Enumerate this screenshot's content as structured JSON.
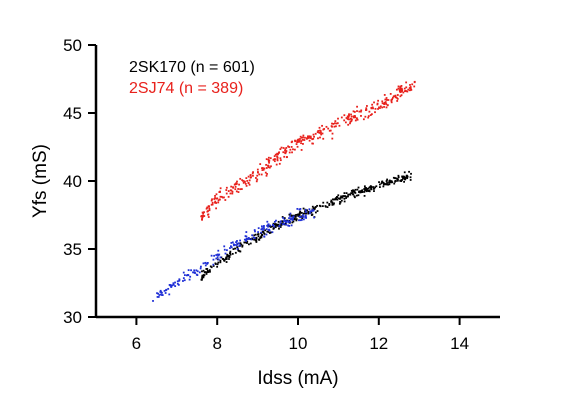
{
  "chart_data": {
    "type": "scatter",
    "xlabel": "Idss (mA)",
    "ylabel": "Yfs (mS)",
    "xlim": [
      5,
      15
    ],
    "ylim": [
      30,
      50
    ],
    "xticks": [
      "6",
      "8",
      "10",
      "12",
      "14"
    ],
    "yticks": [
      "30",
      "35",
      "40",
      "45",
      "50"
    ],
    "grid": false,
    "legend_placement": "top-left",
    "legend": [
      {
        "label": "2SK170 (n = 601)",
        "color": "#000000"
      },
      {
        "label": "2SJ74 (n = 389)",
        "color": "#e8211c"
      }
    ],
    "series": [
      {
        "color": "#000000",
        "count": 601,
        "x_range": [
          7.6,
          12.8
        ],
        "trend": {
          "x": [
            7.6,
            8.5,
            9.5,
            10.5,
            11.5,
            12.8
          ],
          "y": [
            33.0,
            35.0,
            36.8,
            38.0,
            39.2,
            40.4
          ]
        },
        "spread": 0.45
      },
      {
        "color": "#1f2fd6",
        "count": 0,
        "x_range": [
          6.4,
          10.4
        ],
        "trend": {
          "x": [
            6.4,
            7.0,
            8.0,
            9.0,
            10.0,
            10.4
          ],
          "y": [
            31.3,
            32.5,
            34.6,
            36.2,
            37.4,
            37.8
          ]
        },
        "spread": 0.55
      },
      {
        "color": "#e8211c",
        "count": 389,
        "x_range": [
          7.6,
          12.9
        ],
        "trend": {
          "x": [
            7.6,
            8.0,
            9.0,
            10.0,
            11.0,
            12.0,
            12.9
          ],
          "y": [
            37.2,
            38.8,
            40.6,
            42.8,
            44.2,
            45.6,
            47.2
          ]
        },
        "spread": 0.7
      }
    ]
  }
}
